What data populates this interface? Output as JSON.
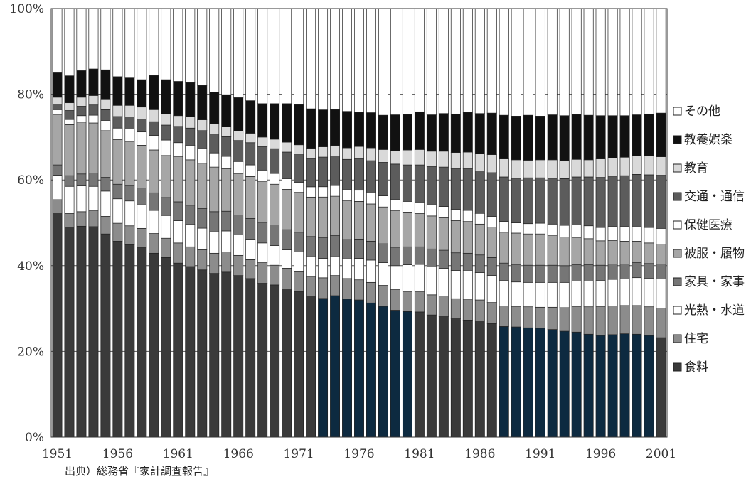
{
  "chart_data": {
    "type": "bar",
    "stacked": true,
    "normalized": true,
    "x": [
      1951,
      1952,
      1953,
      1954,
      1955,
      1956,
      1957,
      1958,
      1959,
      1960,
      1961,
      1962,
      1963,
      1964,
      1965,
      1966,
      1967,
      1968,
      1969,
      1970,
      1971,
      1972,
      1973,
      1974,
      1975,
      1976,
      1977,
      1978,
      1979,
      1980,
      1981,
      1982,
      1983,
      1984,
      1985,
      1986,
      1987,
      1988,
      1989,
      1990,
      1991,
      1992,
      1993,
      1994,
      1995,
      1996,
      1997,
      1998,
      1999,
      2000,
      2001
    ],
    "x_tick_labels": [
      "1951",
      "1956",
      "1961",
      "1966",
      "1971",
      "1976",
      "1981",
      "1986",
      "1991",
      "1996",
      "2001"
    ],
    "y_tick_labels": [
      "0%",
      "20%",
      "40%",
      "60%",
      "80%",
      "100%"
    ],
    "ylim": [
      0,
      100
    ],
    "grid": "horizontal",
    "legend_position": "right",
    "series": [
      {
        "name": "食料",
        "color": "#3a3a3a",
        "values": [
          52.3,
          49.0,
          49.2,
          49.1,
          47.4,
          45.7,
          44.9,
          44.3,
          42.9,
          41.9,
          40.6,
          39.8,
          38.9,
          38.2,
          38.5,
          37.7,
          37.0,
          35.9,
          35.5,
          34.6,
          34.0,
          32.9,
          32.3,
          33.0,
          32.2,
          32.0,
          31.3,
          30.5,
          29.6,
          29.3,
          29.2,
          28.5,
          28.1,
          27.6,
          27.3,
          27.1,
          26.5,
          25.8,
          25.7,
          25.5,
          25.4,
          25.1,
          24.7,
          24.5,
          24.0,
          23.7,
          23.9,
          24.1,
          24.0,
          23.7,
          23.2
        ]
      },
      {
        "name": "住宅",
        "color": "#8c8c8c",
        "values": [
          3.1,
          3.2,
          3.4,
          3.7,
          4.1,
          4.2,
          4.4,
          4.4,
          4.6,
          4.5,
          4.7,
          4.6,
          4.7,
          4.7,
          4.7,
          4.7,
          4.4,
          4.8,
          4.6,
          4.8,
          4.6,
          4.6,
          4.8,
          4.7,
          4.8,
          4.7,
          4.8,
          4.9,
          4.8,
          4.7,
          4.8,
          4.7,
          4.8,
          4.7,
          4.9,
          4.9,
          4.9,
          4.8,
          4.8,
          4.9,
          4.9,
          5.2,
          5.5,
          6.0,
          6.4,
          6.8,
          6.7,
          6.6,
          6.7,
          6.7,
          6.9
        ]
      },
      {
        "name": "光熱・水道",
        "color": "#ffffff",
        "values": [
          5.7,
          6.3,
          6.0,
          5.7,
          5.9,
          5.7,
          5.8,
          5.5,
          5.4,
          5.3,
          5.2,
          5.2,
          5.0,
          5.0,
          4.9,
          4.8,
          4.8,
          4.6,
          4.6,
          4.3,
          4.6,
          4.6,
          4.5,
          4.4,
          4.6,
          5.0,
          5.2,
          5.3,
          5.6,
          6.2,
          6.3,
          6.5,
          6.5,
          6.6,
          6.6,
          6.4,
          6.3,
          5.9,
          5.7,
          5.7,
          5.8,
          5.8,
          5.9,
          5.9,
          6.0,
          6.0,
          6.2,
          6.2,
          6.5,
          6.6,
          6.8
        ]
      },
      {
        "name": "家具・家事",
        "color": "#767676",
        "values": [
          2.4,
          2.5,
          2.8,
          3.1,
          3.2,
          3.4,
          3.6,
          3.9,
          4.1,
          4.2,
          4.4,
          4.5,
          4.6,
          4.7,
          4.6,
          4.6,
          4.8,
          4.8,
          4.8,
          4.7,
          4.6,
          4.7,
          4.8,
          4.9,
          4.5,
          4.5,
          4.4,
          4.4,
          4.3,
          4.2,
          4.1,
          4.2,
          4.2,
          4.1,
          4.1,
          4.1,
          4.2,
          4.1,
          4.1,
          4.0,
          4.0,
          4.0,
          3.9,
          3.8,
          3.8,
          3.6,
          3.6,
          3.5,
          3.5,
          3.5,
          3.5
        ]
      },
      {
        "name": "被服・履物",
        "color": "#a6a6a6",
        "values": [
          11.8,
          11.9,
          12.1,
          11.7,
          10.9,
          10.4,
          10.3,
          10.0,
          10.0,
          9.8,
          10.5,
          10.6,
          10.5,
          10.4,
          9.9,
          9.7,
          9.8,
          9.6,
          9.5,
          9.4,
          9.3,
          9.2,
          9.5,
          9.2,
          9.1,
          8.8,
          8.7,
          8.6,
          8.5,
          8.1,
          7.8,
          7.7,
          7.6,
          7.5,
          7.4,
          7.2,
          7.1,
          7.2,
          7.3,
          7.3,
          7.3,
          7.0,
          6.7,
          6.4,
          6.1,
          5.7,
          5.5,
          5.3,
          5.0,
          4.8,
          4.6
        ]
      },
      {
        "name": "保健医療",
        "color": "#ffffff",
        "values": [
          1.1,
          1.2,
          1.5,
          1.8,
          2.4,
          2.7,
          2.9,
          3.1,
          3.4,
          3.6,
          3.3,
          3.4,
          3.4,
          3.3,
          2.9,
          2.8,
          2.7,
          2.6,
          2.5,
          2.5,
          2.3,
          2.4,
          2.4,
          2.5,
          2.5,
          2.6,
          2.6,
          2.6,
          2.6,
          2.5,
          2.5,
          2.6,
          2.6,
          2.6,
          2.6,
          2.5,
          2.5,
          2.5,
          2.4,
          2.4,
          2.5,
          2.6,
          2.7,
          2.9,
          3.0,
          3.1,
          3.2,
          3.4,
          3.5,
          3.6,
          3.7
        ]
      },
      {
        "name": "交通・通信",
        "color": "#5c5c5c",
        "values": [
          1.3,
          2.1,
          2.2,
          2.4,
          2.5,
          2.7,
          2.8,
          3.0,
          3.2,
          3.5,
          3.8,
          4.0,
          4.2,
          4.4,
          4.6,
          4.9,
          5.2,
          5.5,
          5.8,
          6.2,
          6.5,
          6.6,
          6.9,
          6.9,
          7.1,
          7.4,
          7.5,
          7.8,
          8.3,
          8.5,
          8.8,
          8.9,
          9.2,
          9.5,
          9.7,
          9.9,
          10.2,
          10.4,
          10.4,
          10.7,
          10.6,
          10.7,
          10.9,
          11.2,
          11.4,
          11.7,
          11.8,
          11.9,
          12.1,
          12.3,
          12.4
        ]
      },
      {
        "name": "教育",
        "color": "#d9d9d9",
        "values": [
          1.6,
          1.8,
          2.1,
          2.2,
          2.5,
          2.6,
          2.7,
          2.8,
          2.8,
          2.6,
          2.5,
          2.6,
          2.5,
          2.4,
          2.3,
          2.2,
          2.2,
          2.2,
          2.2,
          2.3,
          2.3,
          2.4,
          2.4,
          2.4,
          2.7,
          2.8,
          3.0,
          3.0,
          3.1,
          3.5,
          3.6,
          3.6,
          3.7,
          3.8,
          3.9,
          4.0,
          4.2,
          4.2,
          4.3,
          4.1,
          4.2,
          4.3,
          4.2,
          4.1,
          4.0,
          4.3,
          4.2,
          4.3,
          4.3,
          4.4,
          4.3
        ]
      },
      {
        "name": "教養娯楽",
        "color": "#111111",
        "values": [
          5.7,
          6.3,
          6.2,
          6.2,
          6.8,
          6.7,
          6.4,
          6.4,
          8.0,
          8.0,
          8.0,
          8.0,
          8.0,
          7.4,
          7.5,
          7.8,
          7.6,
          7.8,
          8.3,
          9.0,
          9.4,
          9.2,
          8.6,
          8.4,
          8.5,
          8.0,
          8.2,
          8.0,
          8.4,
          8.3,
          8.8,
          8.5,
          8.8,
          9.0,
          9.3,
          9.4,
          9.7,
          10.2,
          10.2,
          10.5,
          10.2,
          10.5,
          10.5,
          10.5,
          10.4,
          10.1,
          9.9,
          9.7,
          9.6,
          9.8,
          10.2
        ]
      },
      {
        "name": "その他",
        "color": "#ffffff",
        "values": [
          15.0,
          15.7,
          14.5,
          14.1,
          14.3,
          15.9,
          16.2,
          16.6,
          15.6,
          16.6,
          17.0,
          17.3,
          17.9,
          19.5,
          20.1,
          20.8,
          21.5,
          22.2,
          22.2,
          22.2,
          22.4,
          23.4,
          23.6,
          23.6,
          24.0,
          24.2,
          24.3,
          24.9,
          24.8,
          24.7,
          24.1,
          24.8,
          24.5,
          24.6,
          24.2,
          24.5,
          24.4,
          24.9,
          25.1,
          24.9,
          25.1,
          24.8,
          25.0,
          24.7,
          24.9,
          25.0,
          25.0,
          25.0,
          24.8,
          24.6,
          24.4
        ]
      }
    ],
    "highlight_color": "#0d2a40",
    "highlight_years": [
      1973,
      1974,
      1975,
      1976,
      1977,
      1978,
      1979,
      1980,
      1988,
      1989,
      1990,
      1991,
      1992,
      1993,
      1994,
      1995,
      1996,
      1997,
      1998,
      1999,
      2000
    ]
  },
  "source_note": "出典）総務省『家計調査報告』"
}
